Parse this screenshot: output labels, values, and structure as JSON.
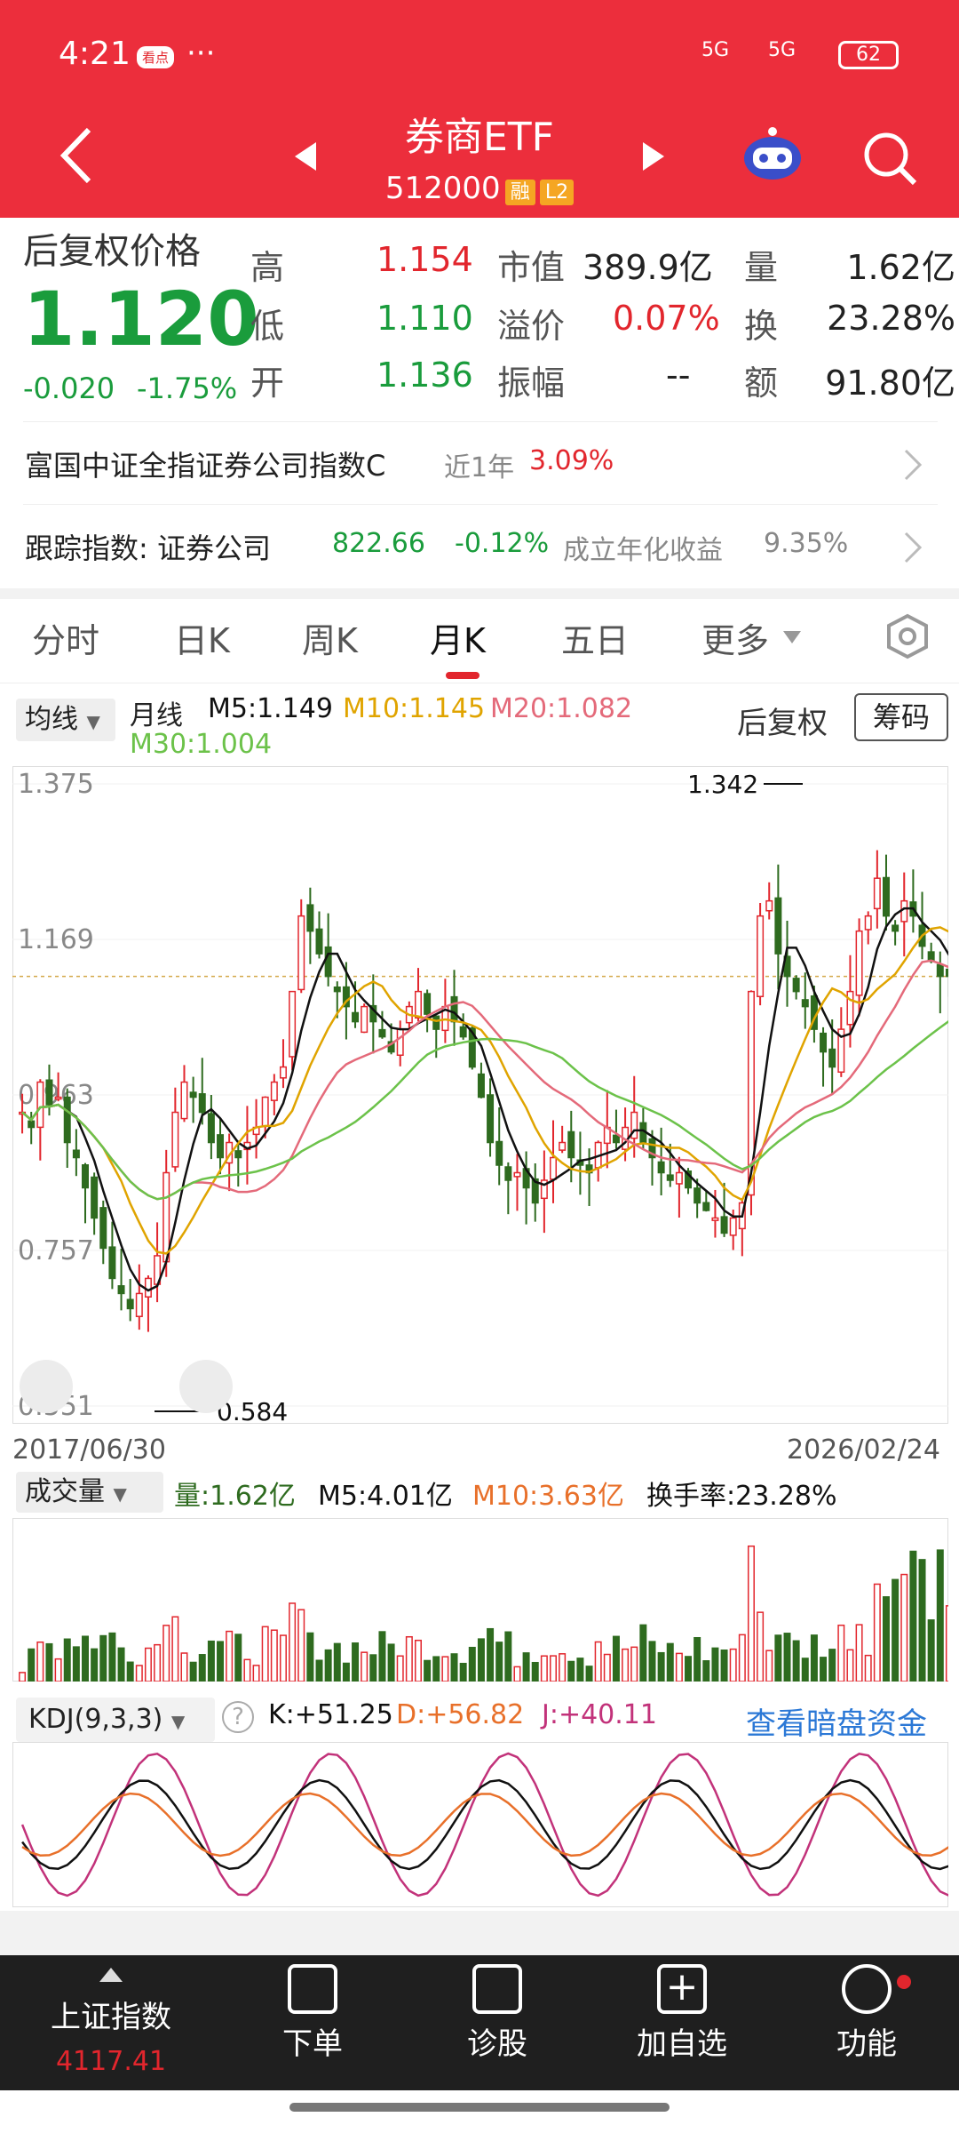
{
  "status": {
    "time": "4:21",
    "badge": "看点",
    "dots": "···",
    "net1": "5G",
    "net2": "5G",
    "battery": "62"
  },
  "header": {
    "title": "券商ETF",
    "code": "512000",
    "tag_margin": "融",
    "tag_level": "L2"
  },
  "quote": {
    "price_label": "后复权价格",
    "price": "1.120",
    "change": "-0.020",
    "change_pct": "-1.75%",
    "high_label": "高",
    "high": "1.154",
    "low_label": "低",
    "low": "1.110",
    "open_label": "开",
    "open": "1.136",
    "mktcap_label": "市值",
    "mktcap": "389.9亿",
    "premium_label": "溢价",
    "premium": "0.07%",
    "amplitude_label": "振幅",
    "amplitude": "--",
    "volume_label": "量",
    "volume": "1.62亿",
    "turnover_label": "换",
    "turnover": "23.28%",
    "amount_label": "额",
    "amount": "91.80亿"
  },
  "info_rows": [
    {
      "name": "富国中证全指证券公司指数C",
      "period": "近1年",
      "value": "3.09%"
    },
    {
      "name": "跟踪指数: 证券公司",
      "point": "822.66",
      "chg": "-0.12%",
      "extra_label": "成立年化收益",
      "extra_value": "9.35%"
    }
  ],
  "tabs": [
    "分时",
    "日K",
    "周K",
    "月K",
    "五日",
    "更多"
  ],
  "active_tab": "月K",
  "ma": {
    "selector": "均线",
    "period": "月线",
    "m5": "M5:1.149",
    "m10": "M10:1.145",
    "m20": "M20:1.082",
    "m30": "M30:1.004",
    "adjust": "后复权",
    "chips": "筹码"
  },
  "chart_data": [
    {
      "type": "candlestick",
      "title": "月K",
      "x_start": "2017/06/30",
      "x_end": "2026/02/24",
      "y_ticks": [
        "1.375",
        "1.169",
        "0.963",
        "0.757",
        "0.551"
      ],
      "ylim": [
        0.551,
        1.375
      ],
      "max_mark": "1.342",
      "min_mark": "0.584",
      "current_price": 1.12,
      "series_colors": {
        "up": "#e2262d",
        "down": "#2e6b1f",
        "m5": "#111111",
        "m10": "#e0a400",
        "m20": "#e46a7a",
        "m30": "#6cc24a"
      }
    },
    {
      "type": "bar",
      "title": "成交量",
      "labels": {
        "vol": "量:1.62亿",
        "m5": "M5:4.01亿",
        "m10": "M10:3.63亿",
        "turnover": "换手率:23.28%"
      }
    },
    {
      "type": "line",
      "title": "KDJ(9,3,3)",
      "labels": {
        "k": "K:+51.25",
        "d": "D:+56.82",
        "j": "J:+40.11"
      },
      "link": "查看暗盘资金"
    }
  ],
  "bottom_nav": {
    "index_name": "上证指数",
    "index_value": "4117.41",
    "items": [
      "下单",
      "诊股",
      "加自选",
      "功能"
    ]
  }
}
